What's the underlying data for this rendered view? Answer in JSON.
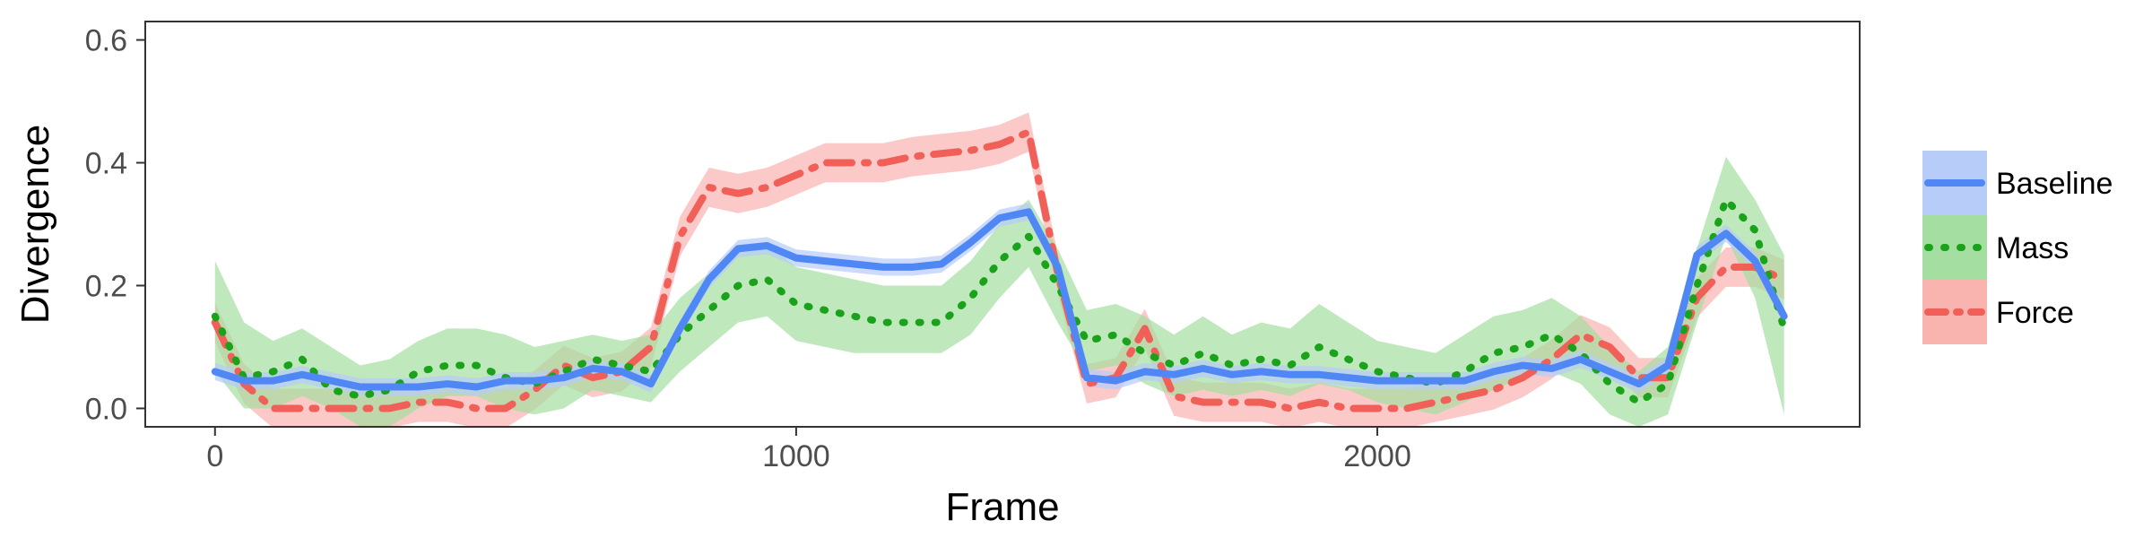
{
  "chart_data": {
    "type": "line",
    "title": "",
    "xlabel": "Frame",
    "ylabel": "Divergence",
    "xlim": [
      -120,
      2830
    ],
    "ylim": [
      -0.03,
      0.63
    ],
    "xticks": [
      0,
      1000,
      2000
    ],
    "xtick_labels": [
      "0",
      "1000",
      "2000"
    ],
    "yticks": [
      0.0,
      0.2,
      0.4,
      0.6
    ],
    "ytick_labels": [
      "0.0",
      "0.2",
      "0.4",
      "0.6"
    ],
    "grid": false,
    "legend_position": "right",
    "series": [
      {
        "name": "Baseline",
        "color": "#4f87f5",
        "band_color": "#b7ccf9",
        "line_style": "solid",
        "x": [
          0,
          50,
          100,
          150,
          200,
          250,
          300,
          350,
          400,
          450,
          500,
          550,
          600,
          650,
          700,
          750,
          800,
          850,
          900,
          950,
          1000,
          1050,
          1100,
          1150,
          1200,
          1250,
          1300,
          1350,
          1400,
          1450,
          1500,
          1550,
          1600,
          1650,
          1700,
          1750,
          1800,
          1850,
          1900,
          1950,
          2000,
          2050,
          2100,
          2150,
          2200,
          2250,
          2300,
          2350,
          2400,
          2450,
          2500,
          2550,
          2600,
          2650,
          2700
        ],
        "y": [
          0.06,
          0.045,
          0.045,
          0.055,
          0.045,
          0.035,
          0.035,
          0.035,
          0.04,
          0.035,
          0.045,
          0.045,
          0.05,
          0.065,
          0.06,
          0.04,
          0.13,
          0.21,
          0.26,
          0.265,
          0.245,
          0.24,
          0.235,
          0.23,
          0.23,
          0.235,
          0.27,
          0.31,
          0.32,
          0.23,
          0.05,
          0.045,
          0.06,
          0.055,
          0.065,
          0.055,
          0.06,
          0.055,
          0.055,
          0.05,
          0.045,
          0.045,
          0.045,
          0.045,
          0.06,
          0.07,
          0.065,
          0.08,
          0.06,
          0.04,
          0.07,
          0.25,
          0.285,
          0.24,
          0.15
        ],
        "band": 0.014
      },
      {
        "name": "Mass",
        "color": "#1aa21a",
        "band_color": "#a4dea0",
        "line_style": "dotted",
        "x": [
          0,
          50,
          100,
          150,
          200,
          250,
          300,
          350,
          400,
          450,
          500,
          550,
          600,
          650,
          700,
          750,
          800,
          850,
          900,
          950,
          1000,
          1050,
          1100,
          1150,
          1200,
          1250,
          1300,
          1350,
          1400,
          1450,
          1500,
          1550,
          1600,
          1650,
          1700,
          1750,
          1800,
          1850,
          1900,
          1950,
          2000,
          2050,
          2100,
          2150,
          2200,
          2250,
          2300,
          2350,
          2400,
          2450,
          2500,
          2550,
          2600,
          2650,
          2700
        ],
        "y": [
          0.15,
          0.05,
          0.06,
          0.08,
          0.03,
          0.02,
          0.03,
          0.06,
          0.07,
          0.07,
          0.05,
          0.04,
          0.06,
          0.08,
          0.07,
          0.06,
          0.12,
          0.16,
          0.2,
          0.21,
          0.17,
          0.16,
          0.15,
          0.14,
          0.14,
          0.14,
          0.18,
          0.24,
          0.28,
          0.2,
          0.11,
          0.12,
          0.09,
          0.07,
          0.09,
          0.07,
          0.08,
          0.07,
          0.1,
          0.08,
          0.06,
          0.05,
          0.04,
          0.06,
          0.09,
          0.1,
          0.12,
          0.09,
          0.04,
          0.01,
          0.04,
          0.2,
          0.34,
          0.29,
          0.13
        ],
        "band_lower": [
          0.06,
          0.0,
          0.0,
          0.02,
          0.0,
          -0.03,
          -0.03,
          0.0,
          0.02,
          0.02,
          0.0,
          -0.01,
          0.0,
          0.03,
          0.02,
          0.01,
          0.06,
          0.1,
          0.14,
          0.15,
          0.11,
          0.1,
          0.09,
          0.09,
          0.09,
          0.09,
          0.12,
          0.18,
          0.23,
          0.14,
          0.06,
          0.07,
          0.04,
          0.02,
          0.03,
          0.02,
          0.03,
          0.02,
          0.04,
          0.03,
          0.01,
          0.0,
          -0.01,
          0.01,
          0.03,
          0.05,
          0.06,
          0.04,
          -0.01,
          -0.03,
          -0.01,
          0.14,
          0.28,
          0.18,
          -0.01
        ],
        "band_upper": [
          0.24,
          0.14,
          0.11,
          0.13,
          0.1,
          0.07,
          0.08,
          0.11,
          0.13,
          0.13,
          0.12,
          0.1,
          0.11,
          0.12,
          0.11,
          0.12,
          0.18,
          0.22,
          0.26,
          0.27,
          0.23,
          0.22,
          0.21,
          0.2,
          0.2,
          0.2,
          0.24,
          0.3,
          0.34,
          0.26,
          0.16,
          0.17,
          0.15,
          0.12,
          0.15,
          0.12,
          0.14,
          0.13,
          0.17,
          0.14,
          0.11,
          0.1,
          0.09,
          0.12,
          0.15,
          0.16,
          0.18,
          0.15,
          0.1,
          0.06,
          0.1,
          0.26,
          0.41,
          0.34,
          0.25
        ]
      },
      {
        "name": "Force",
        "color": "#f06059",
        "band_color": "#f9b4b0",
        "line_style": "dashdot",
        "x": [
          0,
          50,
          100,
          150,
          200,
          250,
          300,
          350,
          400,
          450,
          500,
          550,
          600,
          650,
          700,
          750,
          800,
          850,
          900,
          950,
          1000,
          1050,
          1100,
          1150,
          1200,
          1250,
          1300,
          1350,
          1400,
          1450,
          1500,
          1550,
          1600,
          1650,
          1700,
          1750,
          1800,
          1850,
          1900,
          1950,
          2000,
          2050,
          2100,
          2150,
          2200,
          2250,
          2300,
          2350,
          2400,
          2450,
          2500,
          2550,
          2600,
          2650,
          2700
        ],
        "y": [
          0.14,
          0.04,
          0.0,
          0.0,
          0.0,
          0.0,
          0.0,
          0.01,
          0.01,
          0.0,
          0.0,
          0.03,
          0.07,
          0.05,
          0.06,
          0.1,
          0.28,
          0.36,
          0.35,
          0.36,
          0.38,
          0.4,
          0.4,
          0.4,
          0.41,
          0.415,
          0.42,
          0.43,
          0.45,
          0.22,
          0.04,
          0.05,
          0.13,
          0.02,
          0.01,
          0.01,
          0.01,
          0.0,
          0.01,
          0.0,
          0.0,
          0.0,
          0.01,
          0.02,
          0.03,
          0.05,
          0.08,
          0.12,
          0.1,
          0.05,
          0.05,
          0.18,
          0.23,
          0.23,
          0.21
        ],
        "band": 0.032
      }
    ]
  }
}
